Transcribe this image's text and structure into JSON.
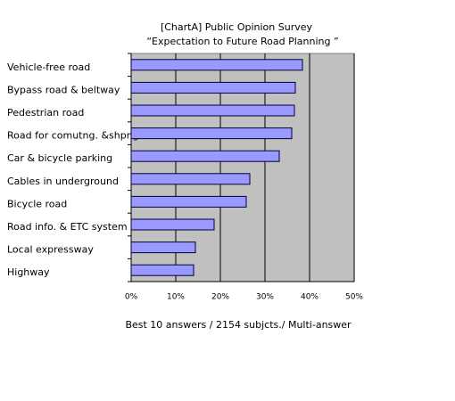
{
  "chart_data": {
    "type": "bar",
    "orientation": "horizontal",
    "title": "[ChartA] Public Opinion Survey",
    "subtitle": "“Expectation to Future Road Planning ”",
    "caption": "Best 10 answers / 2154 subjcts./ Multi-answer",
    "categories": [
      "Vehicle-free road",
      "Bypass road & beltway",
      "Pedestrian road",
      "Road for comutng. &shpng.",
      "Car & bicycle parking",
      "Cables in underground",
      "Bicycle road",
      "Road info. & ETC system",
      "Local expressway",
      "Highway"
    ],
    "values": [
      38.4,
      36.8,
      36.6,
      36,
      33.2,
      26.6,
      25.8,
      18.6,
      14.4,
      14
    ],
    "color": "#9999ff",
    "xlim": [
      0,
      50
    ],
    "xticks": [
      {
        "value": 0,
        "label": "0%"
      },
      {
        "value": 10,
        "label": "10%"
      },
      {
        "value": 20,
        "label": "20%"
      },
      {
        "value": 30,
        "label": "30%"
      },
      {
        "value": 40,
        "label": "40%"
      },
      {
        "value": 50,
        "label": "50%"
      }
    ],
    "grid": true
  }
}
